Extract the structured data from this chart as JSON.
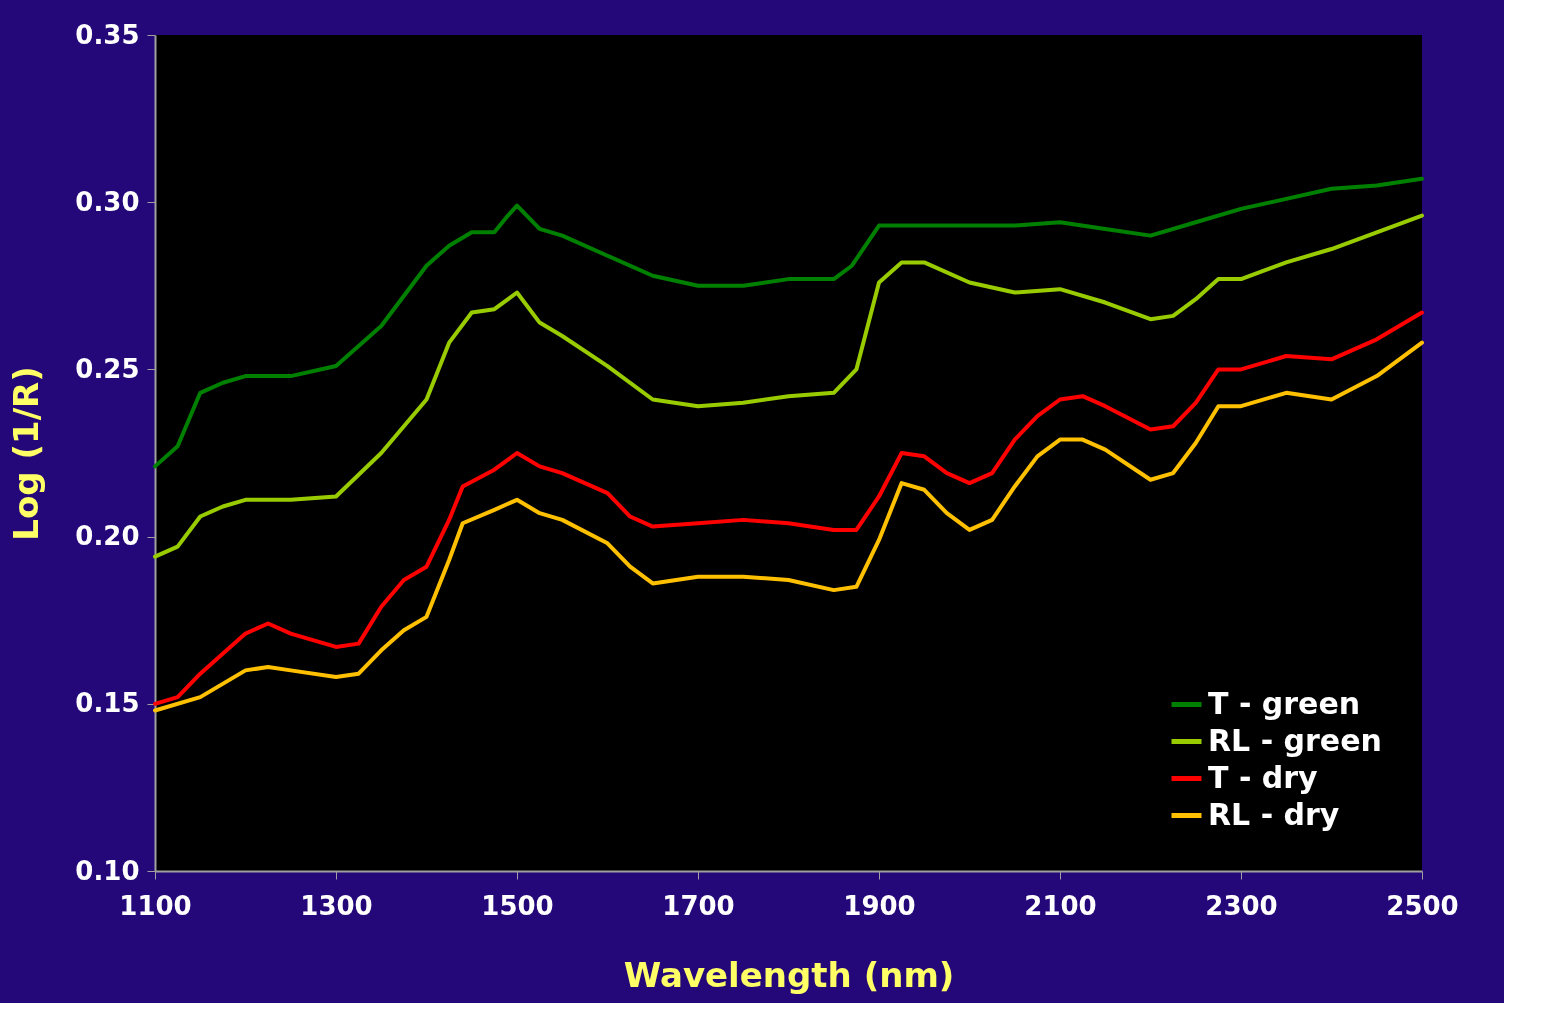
{
  "chart_data": {
    "type": "line",
    "xlabel": "Wavelength (nm)",
    "ylabel": "Log (1/R)",
    "xlim": [
      1100,
      2500
    ],
    "xticks": [
      1100,
      1300,
      1500,
      1700,
      1900,
      2100,
      2300,
      2500
    ],
    "ylim": [
      0.1,
      0.35
    ],
    "yticks": [
      {
        "value": 0.1,
        "label": "0.10"
      },
      {
        "value": 0.15,
        "label": "0.15"
      },
      {
        "value": 0.2,
        "label": "0.20"
      },
      {
        "value": 0.25,
        "label": "0.25"
      },
      {
        "value": 0.3,
        "label": "0.30"
      },
      {
        "value": 0.35,
        "label": "0.35"
      }
    ],
    "grid": false,
    "legend": "bottom right",
    "marker": "none",
    "line_style": "solid",
    "series": [
      {
        "name": "T - green",
        "color": "#008000",
        "x": [
          1100,
          1125,
          1150,
          1175,
          1200,
          1250,
          1300,
          1350,
          1400,
          1425,
          1450,
          1475,
          1490,
          1500,
          1525,
          1550,
          1600,
          1650,
          1700,
          1750,
          1800,
          1850,
          1870,
          1900,
          1950,
          2000,
          2050,
          2100,
          2150,
          2200,
          2250,
          2300,
          2350,
          2400,
          2450,
          2500
        ],
        "values": [
          0.221,
          0.227,
          0.243,
          0.246,
          0.248,
          0.248,
          0.251,
          0.263,
          0.281,
          0.287,
          0.291,
          0.291,
          0.296,
          0.299,
          0.292,
          0.29,
          0.284,
          0.278,
          0.275,
          0.275,
          0.277,
          0.277,
          0.281,
          0.293,
          0.293,
          0.293,
          0.293,
          0.294,
          0.292,
          0.29,
          0.294,
          0.298,
          0.301,
          0.304,
          0.305,
          0.307
        ]
      },
      {
        "name": "RL - green",
        "color": "#99cc00",
        "x": [
          1100,
          1125,
          1150,
          1175,
          1200,
          1250,
          1300,
          1350,
          1400,
          1425,
          1450,
          1475,
          1500,
          1525,
          1550,
          1600,
          1650,
          1700,
          1750,
          1800,
          1850,
          1875,
          1900,
          1925,
          1950,
          2000,
          2050,
          2100,
          2150,
          2200,
          2225,
          2250,
          2275,
          2300,
          2350,
          2400,
          2450,
          2500
        ],
        "values": [
          0.194,
          0.197,
          0.206,
          0.209,
          0.211,
          0.211,
          0.212,
          0.225,
          0.241,
          0.258,
          0.267,
          0.268,
          0.273,
          0.264,
          0.26,
          0.251,
          0.241,
          0.239,
          0.24,
          0.242,
          0.243,
          0.25,
          0.276,
          0.282,
          0.282,
          0.276,
          0.273,
          0.274,
          0.27,
          0.265,
          0.266,
          0.271,
          0.277,
          0.277,
          0.282,
          0.286,
          0.291,
          0.296
        ]
      },
      {
        "name": "T - dry",
        "color": "#ff0000",
        "x": [
          1100,
          1125,
          1150,
          1200,
          1225,
          1250,
          1300,
          1325,
          1350,
          1375,
          1400,
          1425,
          1440,
          1475,
          1500,
          1525,
          1550,
          1600,
          1625,
          1650,
          1700,
          1750,
          1800,
          1850,
          1875,
          1900,
          1925,
          1950,
          1975,
          2000,
          2025,
          2050,
          2075,
          2100,
          2125,
          2150,
          2200,
          2225,
          2250,
          2275,
          2300,
          2350,
          2400,
          2450,
          2500
        ],
        "values": [
          0.15,
          0.152,
          0.159,
          0.171,
          0.174,
          0.171,
          0.167,
          0.168,
          0.179,
          0.187,
          0.191,
          0.205,
          0.215,
          0.22,
          0.225,
          0.221,
          0.219,
          0.213,
          0.206,
          0.203,
          0.204,
          0.205,
          0.204,
          0.202,
          0.202,
          0.212,
          0.225,
          0.224,
          0.219,
          0.216,
          0.219,
          0.229,
          0.236,
          0.241,
          0.242,
          0.239,
          0.232,
          0.233,
          0.24,
          0.25,
          0.25,
          0.254,
          0.253,
          0.259,
          0.267
        ]
      },
      {
        "name": "RL - dry",
        "color": "#ffc000",
        "x": [
          1100,
          1150,
          1200,
          1225,
          1250,
          1300,
          1325,
          1350,
          1375,
          1400,
          1425,
          1440,
          1475,
          1500,
          1525,
          1550,
          1600,
          1625,
          1650,
          1700,
          1750,
          1800,
          1850,
          1875,
          1900,
          1925,
          1950,
          1975,
          2000,
          2025,
          2050,
          2075,
          2100,
          2125,
          2150,
          2200,
          2225,
          2250,
          2275,
          2300,
          2350,
          2400,
          2450,
          2500
        ],
        "values": [
          0.148,
          0.152,
          0.16,
          0.161,
          0.16,
          0.158,
          0.159,
          0.166,
          0.172,
          0.176,
          0.193,
          0.204,
          0.208,
          0.211,
          0.207,
          0.205,
          0.198,
          0.191,
          0.186,
          0.188,
          0.188,
          0.187,
          0.184,
          0.185,
          0.199,
          0.216,
          0.214,
          0.207,
          0.202,
          0.205,
          0.215,
          0.224,
          0.229,
          0.229,
          0.226,
          0.217,
          0.219,
          0.228,
          0.239,
          0.239,
          0.243,
          0.241,
          0.248,
          0.258
        ]
      }
    ]
  }
}
